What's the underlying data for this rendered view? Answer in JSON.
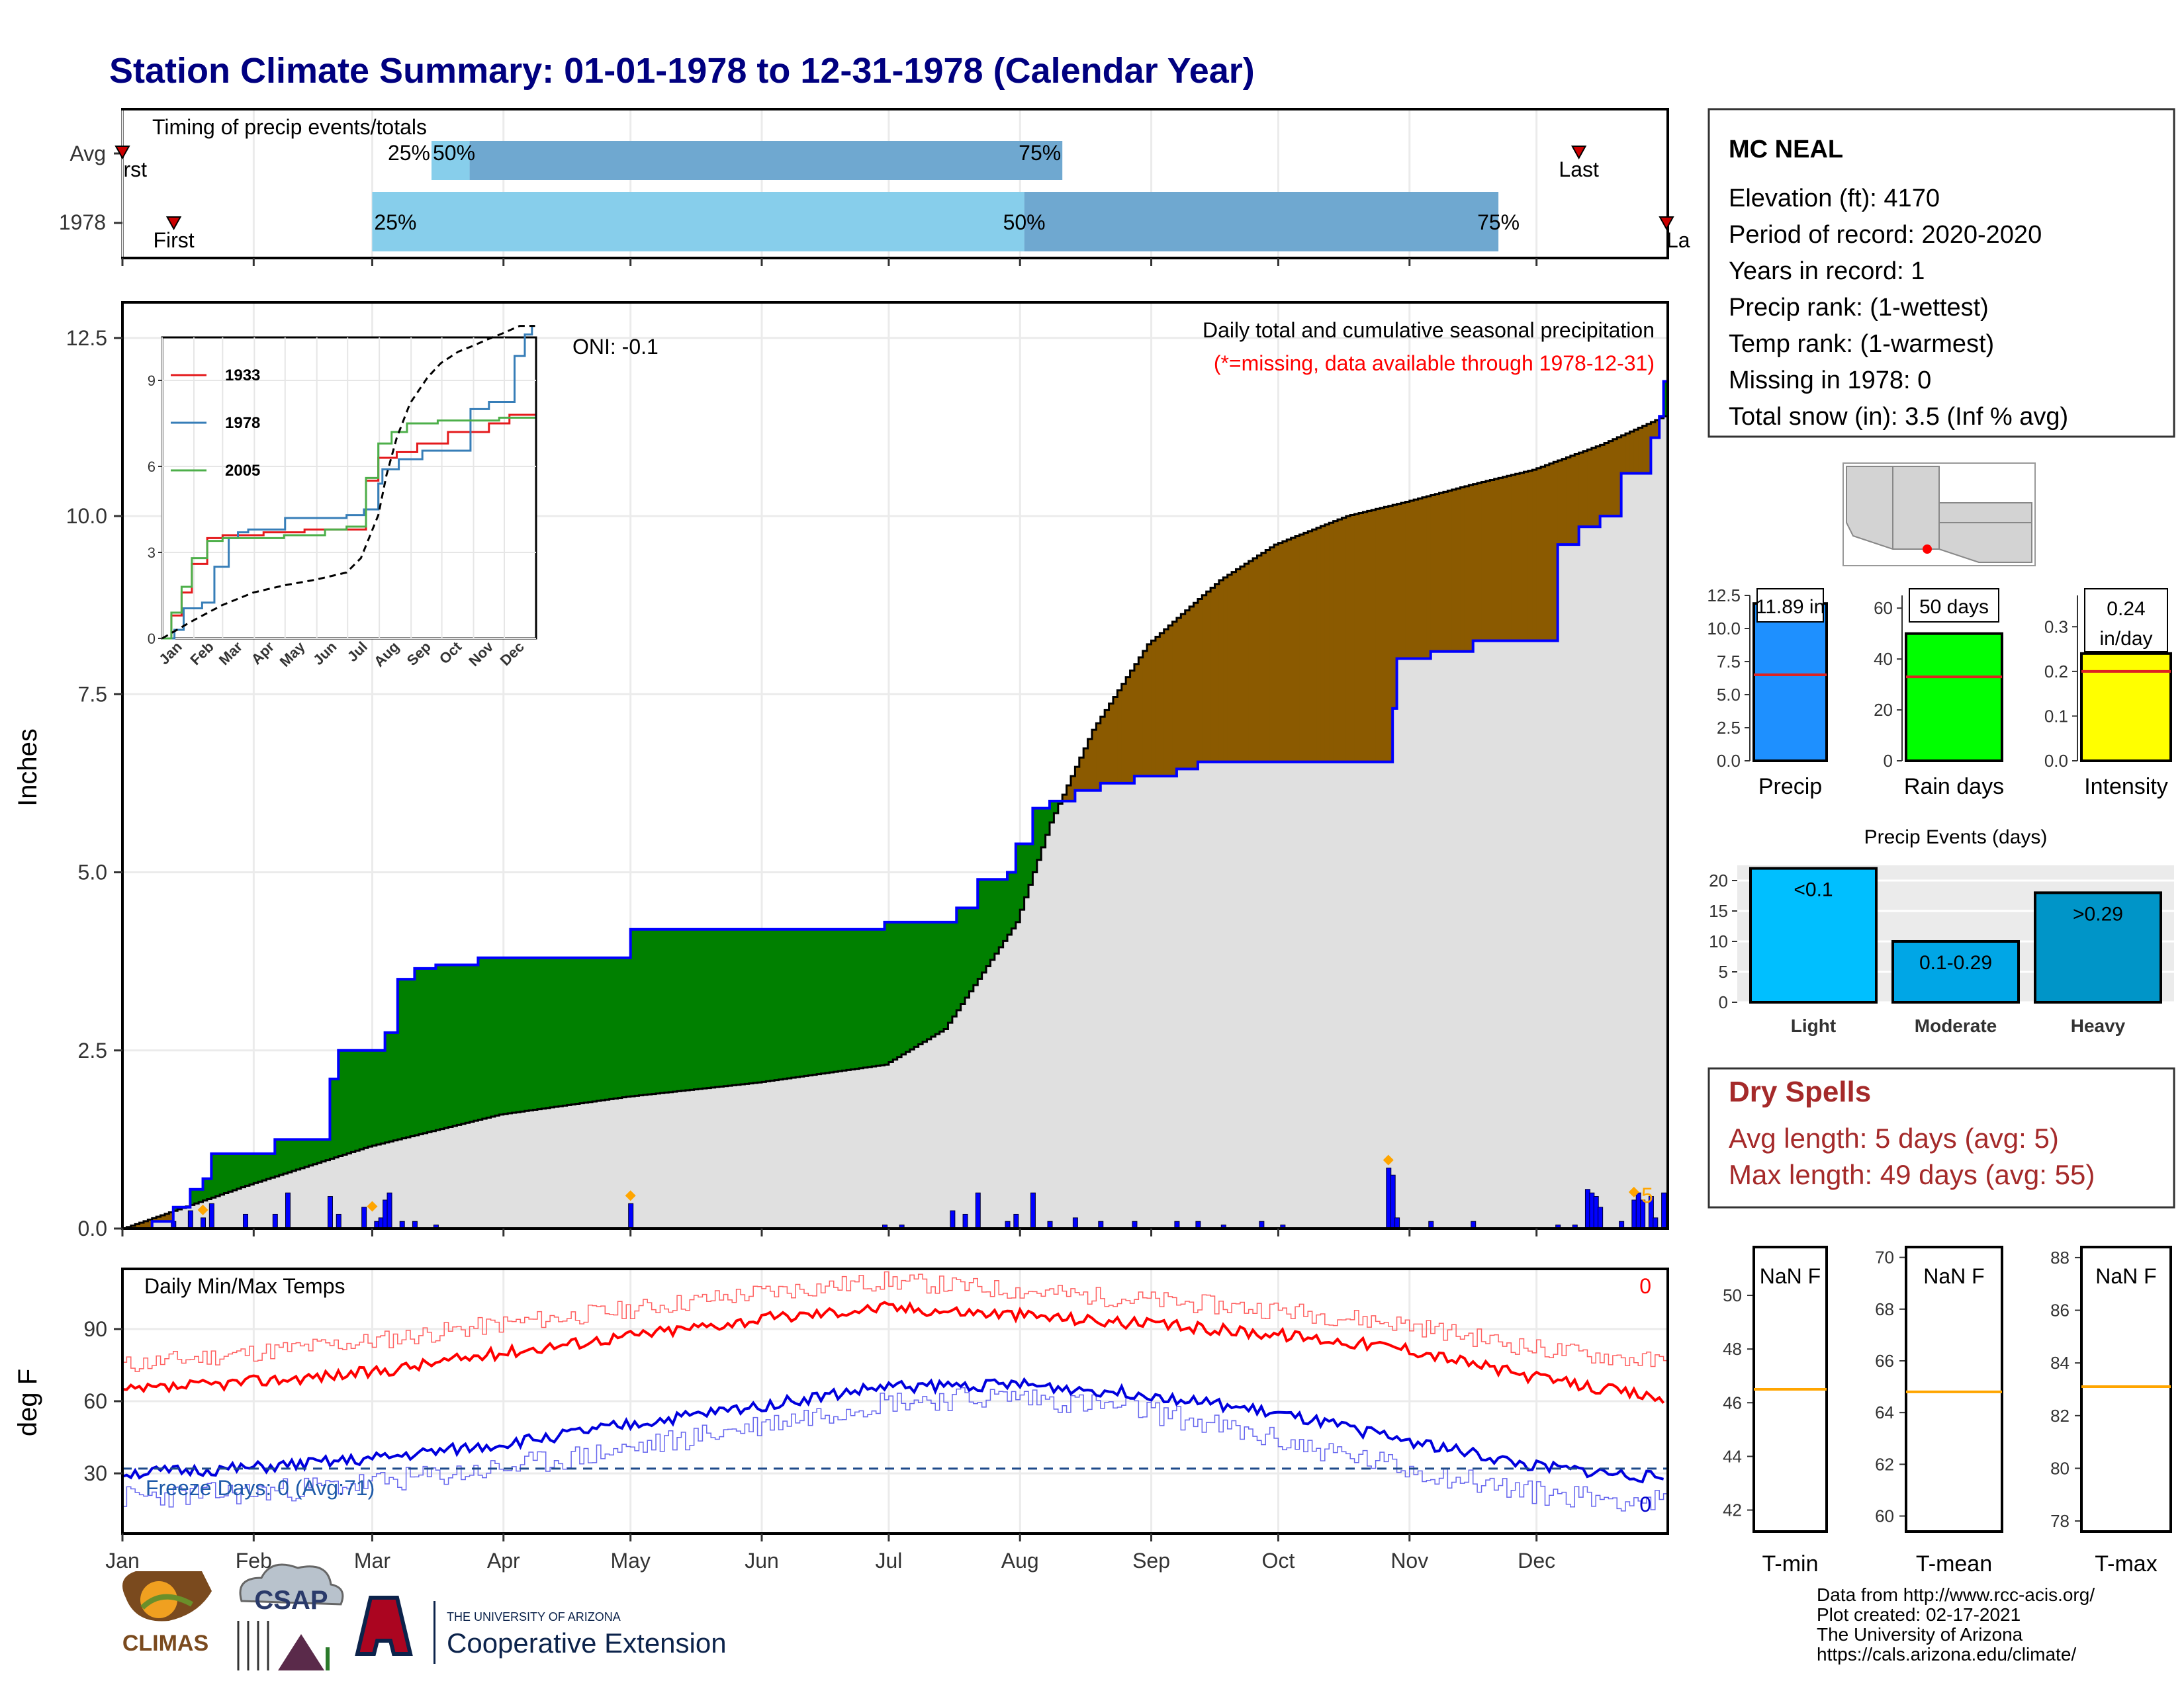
{
  "title": "Station Climate Summary: 01-01-1978 to 12-31-1978 (Calendar Year)",
  "timing": {
    "title": "Timing of precip events/totals",
    "rows": [
      {
        "label": "Avg",
        "first_label": "First",
        "last_label": "Last",
        "p25_label": "25%",
        "p50_label": "50%",
        "p75_label": "75%",
        "first_doy": 1,
        "p25_doy": 74,
        "p50_doy": 83,
        "p75_doy": 223,
        "last_doy": 345
      },
      {
        "label": "1978",
        "first_label": "First",
        "last_label": "Last",
        "p25_label": "25%",
        "p50_label": "50%",
        "p75_label": "75%",
        "first_doy": 10,
        "p25_doy": 60,
        "p50_doy": 214,
        "p75_doy": 326,
        "last_doy": 366
      }
    ]
  },
  "months": [
    "Jan",
    "Feb",
    "Mar",
    "Apr",
    "May",
    "Jun",
    "Jul",
    "Aug",
    "Sep",
    "Oct",
    "Nov",
    "Dec"
  ],
  "chart_data": [
    {
      "type": "area",
      "name": "main_precip",
      "title": "Daily total and cumulative seasonal precipitation",
      "subtitle": "(*=missing, data available through 1978-12-31)",
      "oni": "ONI: -0.1",
      "ylabel": "Inches",
      "ylim": [
        0,
        13
      ],
      "yticks": [
        "0.0",
        "2.5",
        "5.0",
        "7.5",
        "10.0",
        "12.5"
      ],
      "extreme_count": "5",
      "series": [
        {
          "name": "1978 cumulative",
          "x": [
            1,
            8,
            13,
            17,
            20,
            22,
            32,
            37,
            40,
            50,
            52,
            58,
            60,
            61,
            63,
            66,
            70,
            75,
            85,
            93,
            100,
            120,
            121,
            140,
            160,
            180,
            181,
            190,
            197,
            198,
            202,
            203,
            210,
            211,
            212,
            214,
            215,
            216,
            220,
            226,
            232,
            240,
            250,
            255,
            261,
            270,
            275,
            300,
            301,
            302,
            310,
            320,
            321,
            340,
            345,
            350,
            355,
            358,
            360,
            362,
            363,
            364,
            365
          ],
          "y": [
            0,
            0.1,
            0.3,
            0.55,
            0.7,
            1.05,
            1.05,
            1.25,
            1.25,
            2.1,
            2.5,
            2.5,
            2.5,
            2.5,
            2.75,
            3.5,
            3.65,
            3.7,
            3.8,
            3.8,
            3.8,
            3.8,
            4.2,
            4.2,
            4.2,
            4.2,
            4.3,
            4.3,
            4.3,
            4.5,
            4.5,
            4.9,
            5.0,
            5.0,
            5.4,
            5.4,
            5.4,
            5.9,
            6.0,
            6.15,
            6.25,
            6.35,
            6.45,
            6.55,
            6.55,
            6.55,
            6.55,
            6.55,
            7.3,
            8.0,
            8.1,
            8.25,
            8.25,
            9.6,
            9.85,
            10.0,
            10.6,
            10.6,
            10.6,
            11.1,
            11.1,
            11.4,
            11.89
          ]
        },
        {
          "name": "Average cumulative",
          "x": [
            1,
            30,
            59,
            90,
            120,
            151,
            181,
            195,
            212,
            220,
            230,
            243,
            260,
            273,
            290,
            304,
            320,
            334,
            350,
            365
          ],
          "y": [
            0,
            0.6,
            1.15,
            1.6,
            1.85,
            2.05,
            2.3,
            2.8,
            4.3,
            5.7,
            7.0,
            8.2,
            9.1,
            9.6,
            10.0,
            10.2,
            10.45,
            10.65,
            11.0,
            11.4
          ]
        },
        {
          "name": "Daily precip",
          "x": [
            13,
            17,
            20,
            22,
            30,
            37,
            40,
            50,
            52,
            58,
            61,
            62,
            63,
            64,
            67,
            70,
            75,
            121,
            181,
            185,
            197,
            200,
            203,
            210,
            212,
            216,
            220,
            226,
            232,
            240,
            250,
            255,
            261,
            270,
            275,
            300,
            301,
            302,
            310,
            320,
            340,
            344,
            347,
            348,
            349,
            350,
            355,
            358,
            359,
            360,
            362,
            363,
            365
          ],
          "y": [
            0.1,
            0.25,
            0.15,
            0.35,
            0.2,
            0.2,
            0.5,
            0.45,
            0.2,
            0.3,
            0.1,
            0.15,
            0.4,
            0.5,
            0.1,
            0.1,
            0.05,
            0.35,
            0.05,
            0.05,
            0.25,
            0.2,
            0.5,
            0.1,
            0.2,
            0.5,
            0.1,
            0.15,
            0.1,
            0.1,
            0.1,
            0.1,
            0.05,
            0.1,
            0.05,
            0.85,
            0.75,
            0.15,
            0.1,
            0.1,
            0.05,
            0.05,
            0.55,
            0.5,
            0.45,
            0.3,
            0.1,
            0.4,
            0.5,
            0.4,
            0.45,
            0.15,
            0.5
          ]
        }
      ],
      "extreme_markers_doy": [
        20,
        60,
        121,
        300,
        358
      ]
    },
    {
      "type": "line",
      "name": "inset_cumulative",
      "categories": [
        "Jan",
        "Feb",
        "Mar",
        "Apr",
        "May",
        "Jun",
        "Jul",
        "Aug",
        "Sep",
        "Oct",
        "Nov",
        "Dec"
      ],
      "ylim": [
        0,
        10.5
      ],
      "yticks": [
        "0",
        "3",
        "6",
        "9"
      ],
      "series": [
        {
          "name": "1933",
          "color": "#e41a1c",
          "x": [
            1,
            10,
            20,
            30,
            45,
            60,
            75,
            100,
            140,
            181,
            200,
            212,
            230,
            250,
            280,
            300,
            320,
            340,
            365
          ],
          "y": [
            0,
            0.8,
            1.6,
            2.6,
            3.5,
            3.6,
            3.6,
            3.7,
            3.8,
            3.8,
            5.5,
            6.3,
            6.5,
            6.8,
            7.2,
            7.2,
            7.5,
            7.8,
            7.8
          ]
        },
        {
          "name": "1978",
          "color": "#377eb8",
          "x": [
            1,
            13,
            22,
            40,
            52,
            66,
            75,
            85,
            121,
            181,
            198,
            212,
            216,
            232,
            255,
            300,
            302,
            320,
            345,
            355,
            362,
            365
          ],
          "y": [
            0,
            0.3,
            1.05,
            1.25,
            2.5,
            3.5,
            3.7,
            3.8,
            4.2,
            4.3,
            4.5,
            5.4,
            5.9,
            6.25,
            6.55,
            6.55,
            8.0,
            8.25,
            9.85,
            10.6,
            11.1,
            11.89
          ]
        },
        {
          "name": "2005",
          "color": "#4daf4a",
          "x": [
            1,
            10,
            20,
            30,
            45,
            60,
            90,
            120,
            160,
            181,
            200,
            212,
            225,
            240,
            270,
            300,
            330,
            365
          ],
          "y": [
            0,
            0.9,
            1.8,
            2.8,
            3.4,
            3.5,
            3.5,
            3.6,
            3.8,
            3.9,
            5.6,
            6.8,
            7.2,
            7.5,
            7.6,
            7.6,
            7.7,
            7.7
          ]
        },
        {
          "name": "Average",
          "color": "#000000",
          "x": [
            1,
            30,
            59,
            90,
            120,
            151,
            181,
            195,
            212,
            220,
            230,
            243,
            260,
            273,
            290,
            304,
            320,
            334,
            350,
            365
          ],
          "y": [
            0,
            0.6,
            1.15,
            1.6,
            1.85,
            2.05,
            2.3,
            2.8,
            4.3,
            5.7,
            7.0,
            8.2,
            9.1,
            9.6,
            10.0,
            10.2,
            10.45,
            10.65,
            11.0,
            11.4
          ]
        }
      ]
    },
    {
      "type": "line",
      "name": "daily_temps",
      "title": "Daily Min/Max Temps",
      "ylabel": "deg F",
      "ylim": [
        5,
        115
      ],
      "yticks": [
        "30",
        "60",
        "90"
      ],
      "count_top": "0",
      "count_bottom": "0",
      "freeze_label": "Freeze Days: 0 (Avg:71)",
      "freeze_line": 32,
      "series": [
        {
          "name": "Avg max",
          "x": [
            1,
            30,
            60,
            90,
            120,
            151,
            181,
            212,
            243,
            273,
            304,
            334,
            365
          ],
          "y": [
            64,
            68,
            72,
            80,
            87,
            94,
            99,
            96,
            92,
            88,
            82,
            70,
            61
          ]
        },
        {
          "name": "Avg min",
          "x": [
            1,
            30,
            60,
            90,
            120,
            151,
            181,
            212,
            243,
            273,
            304,
            334,
            365
          ],
          "y": [
            30,
            32,
            36,
            42,
            50,
            58,
            66,
            67,
            63,
            55,
            44,
            33,
            28
          ]
        },
        {
          "name": "Record max",
          "x": [
            1,
            30,
            60,
            90,
            120,
            151,
            181,
            212,
            243,
            273,
            304,
            334,
            365
          ],
          "y": [
            75,
            80,
            85,
            92,
            98,
            105,
            110,
            106,
            102,
            98,
            92,
            82,
            76
          ]
        },
        {
          "name": "Record min",
          "x": [
            1,
            30,
            60,
            90,
            120,
            151,
            181,
            212,
            243,
            273,
            304,
            334,
            365
          ],
          "y": [
            20,
            22,
            26,
            32,
            40,
            50,
            60,
            62,
            56,
            44,
            32,
            22,
            18
          ]
        }
      ]
    },
    {
      "type": "bar",
      "name": "precip_rank",
      "categories": [
        "Precip"
      ],
      "values": [
        11.89
      ],
      "avg": 6.5,
      "label": "11.89 in",
      "ylim": [
        0,
        12.5
      ],
      "yticks": [
        "0.0",
        "2.5",
        "5.0",
        "7.5",
        "10.0",
        "12.5"
      ],
      "color": "#1e90ff"
    },
    {
      "type": "bar",
      "name": "rain_days",
      "categories": [
        "Rain days"
      ],
      "values": [
        50
      ],
      "avg": 33,
      "label": "50 days",
      "ylim": [
        0,
        65
      ],
      "yticks": [
        "0",
        "20",
        "40",
        "60"
      ],
      "color": "#00ff00"
    },
    {
      "type": "bar",
      "name": "intensity",
      "categories": [
        "Intensity"
      ],
      "values": [
        0.24
      ],
      "avg": 0.2,
      "label": "0.24 in/day",
      "ylim": [
        0,
        0.37
      ],
      "yticks": [
        "0.0",
        "0.1",
        "0.2",
        "0.3"
      ],
      "color": "#ffff00"
    },
    {
      "type": "bar",
      "name": "precip_events",
      "title": "Precip Events (days)",
      "categories": [
        "Light",
        "Moderate",
        "Heavy"
      ],
      "values": [
        22,
        10,
        18
      ],
      "labels": [
        "<0.1",
        "0.1-0.29",
        ">0.29"
      ],
      "ylim": [
        0,
        22.5
      ],
      "yticks": [
        "0",
        "5",
        "10",
        "15",
        "20"
      ],
      "colors": [
        "#00bfff",
        "#00a6e6",
        "#0095c8"
      ]
    },
    {
      "type": "bar",
      "name": "tmin",
      "categories": [
        "T-min"
      ],
      "label": "NaN F",
      "avg": 46.5,
      "ylim": [
        41.2,
        51.8
      ],
      "yticks": [
        "42",
        "44",
        "46",
        "48",
        "50"
      ]
    },
    {
      "type": "bar",
      "name": "tmean",
      "categories": [
        "T-mean"
      ],
      "label": "NaN F",
      "avg": 64.8,
      "ylim": [
        59.4,
        70.4
      ],
      "yticks": [
        "60",
        "62",
        "64",
        "66",
        "68",
        "70"
      ]
    },
    {
      "type": "bar",
      "name": "tmax",
      "categories": [
        "T-max"
      ],
      "label": "NaN F",
      "avg": 83.1,
      "ylim": [
        77.6,
        88.4
      ],
      "yticks": [
        "78",
        "80",
        "82",
        "84",
        "86",
        "88"
      ]
    }
  ],
  "station": {
    "name": "MC NEAL",
    "lines": [
      "Elevation (ft): 4170",
      "Period of record: 2020-2020",
      "Years in record: 1",
      "Precip rank:  (1-wettest)",
      "Temp rank:  (1-warmest)",
      "Missing in 1978: 0",
      "Total snow (in): 3.5 (Inf % avg)"
    ]
  },
  "dry_spells": {
    "title": "Dry Spells",
    "avg": "Avg length: 5 days (avg: 5)",
    "max": "Max length: 49 days (avg: 55)"
  },
  "footer": {
    "lines": [
      "Data from http://www.rcc-acis.org/",
      "Plot created: 02-17-2021",
      "The University of Arizona",
      "https://cals.arizona.edu/climate/"
    ],
    "climas": "CLIMAS",
    "csap": "CSAP",
    "ua_small": "THE UNIVERSITY OF ARIZONA",
    "ua_big": "Cooperative Extension"
  },
  "colors": {
    "title": "#000080",
    "wet": "#008000",
    "dry": "#8b5a00",
    "cum": "#0000ff",
    "avg_fill": "#e0e0e0",
    "max": "#ff0000",
    "min": "#0000dd",
    "dry_text": "#a52a2a",
    "light_blue": "#87ceeb",
    "mid_blue": "#6fa8d0"
  }
}
